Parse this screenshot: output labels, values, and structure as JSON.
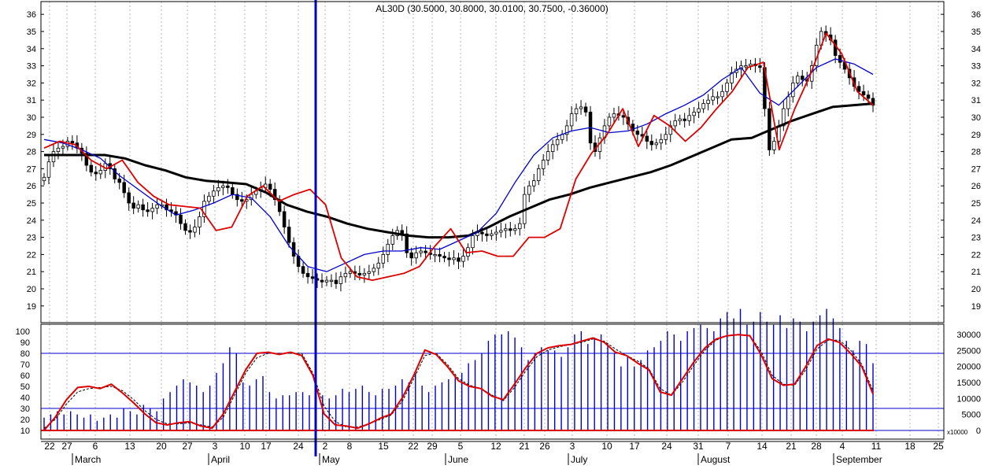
{
  "header": {
    "title": "AL30D (30.5000, 30.8000, 30.0100, 30.7500, -0.36000)"
  },
  "colors": {
    "candle_body_up": "#ffffff",
    "candle_body_down": "#000000",
    "ma_fast": "#dd0000",
    "ma_mid": "#0000cc",
    "ma_slow": "#000000",
    "cursor": "#0000cc",
    "volume": "#0000cc",
    "osc_k": "#dd0000",
    "osc_d": "#000000",
    "level_lines": "#0000cc"
  },
  "chart_data": [
    {
      "type": "candlestick",
      "title": "AL30D (30.5000, 30.8000, 30.0100, 30.7500, -0.36000)",
      "y_ticks": [
        19,
        20,
        21,
        22,
        23,
        24,
        25,
        26,
        27,
        28,
        29,
        30,
        31,
        32,
        33,
        34,
        35,
        36
      ],
      "ylim": [
        18.2,
        36.6
      ],
      "grid": "vertical dotted",
      "series": [
        {
          "name": "",
          "kind": "close_path",
          "values": [
            26.5,
            27.4,
            28.0,
            28.2,
            28.3,
            28.6,
            28.5,
            28.2,
            27.9,
            27.2,
            26.8,
            26.7,
            26.9,
            27.3,
            27.0,
            26.4,
            26.2,
            25.6,
            25.0,
            24.7,
            24.9,
            24.6,
            24.5,
            24.7,
            24.9,
            24.9,
            24.6,
            24.5,
            24.3,
            23.8,
            23.4,
            23.3,
            23.6,
            24.2,
            25.1,
            25.4,
            25.7,
            25.9,
            26.0,
            25.9,
            25.5,
            25.2,
            25.1,
            25.2,
            25.5,
            25.7,
            25.9,
            26.1,
            25.8,
            25.2,
            24.5,
            23.6,
            22.7,
            21.9,
            21.3,
            20.9,
            20.7,
            20.6,
            20.5,
            20.4,
            20.5,
            20.5,
            20.3,
            20.7,
            20.9,
            21.0,
            20.9,
            20.8,
            20.9,
            21.0,
            21.2,
            21.5,
            22.0,
            22.6,
            23.1,
            23.4,
            23.2,
            22.1,
            21.8,
            22.1,
            22.2,
            22.1,
            22.0,
            22.0,
            21.9,
            21.8,
            21.7,
            21.8,
            21.6,
            21.9,
            22.4,
            23.1,
            23.3,
            23.2,
            23.1,
            23.2,
            23.3,
            23.4,
            23.5,
            23.4,
            23.5,
            23.8,
            25.5,
            26.0,
            26.3,
            27.0,
            27.5,
            28.0,
            28.4,
            28.7,
            29.0,
            29.5,
            30.2,
            30.5,
            30.6,
            30.3,
            28.5,
            28.0,
            28.8,
            29.5,
            30.0,
            30.2,
            30.1,
            30.0,
            29.6,
            29.2,
            29.0,
            28.9,
            28.6,
            28.4,
            28.5,
            28.7,
            29.0,
            29.5,
            29.8,
            29.9,
            29.8,
            30.1,
            30.3,
            30.5,
            30.8,
            31.0,
            31.2,
            31.2,
            31.5,
            32.0,
            32.6,
            32.8,
            33.0,
            33.0,
            33.1,
            33.0,
            32.9,
            30.5,
            28.1,
            28.6,
            29.5,
            30.5,
            31.2,
            32.0,
            32.4,
            32.2,
            32.1,
            33.0,
            34.2,
            35.0,
            34.8,
            34.5,
            33.6,
            33.2,
            32.8,
            32.3,
            31.8,
            31.5,
            31.3,
            31.1,
            30.7
          ]
        },
        {
          "name": "",
          "kind": "moving_average_fast",
          "values": [
            28.2,
            28.6,
            28.4,
            27.5,
            27.0,
            27.5,
            26.2,
            25.4,
            24.9,
            24.8,
            24.7,
            23.4,
            23.6,
            25.4,
            26.0,
            25.1,
            25.5,
            25.8,
            24.9,
            21.8,
            20.7,
            20.5,
            20.7,
            20.9,
            21.3,
            22.5,
            23.5,
            22.1,
            22.2,
            21.9,
            21.9,
            23.0,
            23.0,
            23.5,
            26.4,
            27.9,
            29.0,
            30.5,
            28.3,
            30.1,
            29.5,
            28.6,
            29.4,
            30.5,
            31.5,
            32.9,
            33.2,
            28.1,
            30.5,
            32.5,
            34.9,
            33.7,
            31.5,
            30.7
          ]
        },
        {
          "name": "",
          "kind": "moving_average_mid",
          "values": [
            28.7,
            28.5,
            28.1,
            27.6,
            26.6,
            25.8,
            25.0,
            24.3,
            24.6,
            25.0,
            25.5,
            25.3,
            24.2,
            22.5,
            21.3,
            21.0,
            21.5,
            22.0,
            22.2,
            22.2,
            22.4,
            22.3,
            22.8,
            23.3,
            24.4,
            26.2,
            27.8,
            28.8,
            29.2,
            29.4,
            29.1,
            29.2,
            29.6,
            30.2,
            30.7,
            31.3,
            32.2,
            32.9,
            31.4,
            30.7,
            31.8,
            32.9,
            33.4,
            33.1,
            32.5
          ]
        },
        {
          "name": "",
          "kind": "moving_average_slow",
          "values": [
            27.8,
            27.8,
            27.8,
            27.8,
            27.6,
            27.2,
            26.9,
            26.5,
            26.3,
            26.2,
            26.1,
            25.6,
            24.9,
            24.5,
            24.2,
            23.8,
            23.5,
            23.3,
            23.1,
            23.0,
            23.0,
            23.1,
            23.6,
            24.2,
            24.7,
            25.2,
            25.5,
            25.9,
            26.2,
            26.5,
            26.8,
            27.2,
            27.7,
            28.2,
            28.7,
            28.8,
            29.3,
            29.8,
            30.2,
            30.6,
            30.7,
            30.8
          ]
        }
      ]
    },
    {
      "type": "line",
      "y_ticks_left": [
        10,
        20,
        30,
        40,
        50,
        60,
        70,
        80,
        90,
        100
      ],
      "y_ticks_right": [
        "0",
        "5000",
        "10000",
        "15000",
        "20000",
        "25000",
        "30000"
      ],
      "right_axis_unit": "x10000",
      "levels": [
        80,
        30,
        10
      ],
      "ylim": [
        0,
        105
      ],
      "series": [
        {
          "name": "",
          "kind": "oscillator_k",
          "values": [
            10,
            22,
            38,
            49,
            50,
            48,
            52,
            44,
            35,
            25,
            17,
            15,
            17,
            18,
            14,
            12,
            25,
            45,
            65,
            80,
            81,
            79,
            81,
            78,
            60,
            25,
            15,
            14,
            12,
            16,
            21,
            25,
            40,
            60,
            83,
            79,
            68,
            55,
            50,
            48,
            41,
            38,
            52,
            67,
            80,
            85,
            87,
            88,
            91,
            94,
            90,
            81,
            78,
            71,
            65,
            45,
            42,
            57,
            72,
            85,
            93,
            96,
            97,
            96,
            79,
            57,
            51,
            52,
            68,
            87,
            93,
            90,
            80,
            68,
            43
          ]
        },
        {
          "name": "",
          "kind": "oscillator_d",
          "values": [
            12,
            20,
            34,
            45,
            48,
            49,
            50,
            46,
            38,
            28,
            20,
            16,
            16,
            17,
            15,
            13,
            22,
            42,
            62,
            76,
            80,
            80,
            80,
            80,
            62,
            32,
            18,
            13,
            13,
            16,
            20,
            24,
            37,
            57,
            78,
            80,
            70,
            57,
            51,
            48,
            42,
            37,
            49,
            64,
            77,
            83,
            86,
            88,
            90,
            93,
            91,
            84,
            78,
            73,
            66,
            48,
            42,
            54,
            69,
            83,
            92,
            96,
            97,
            96,
            82,
            60,
            52,
            51,
            65,
            84,
            92,
            92,
            83,
            70,
            46
          ]
        },
        {
          "name": "",
          "kind": "volume",
          "values": [
            4,
            5,
            6,
            5,
            6,
            5,
            4,
            5,
            3,
            4,
            5,
            4,
            7,
            6,
            5,
            8,
            7,
            6,
            10,
            12,
            14,
            16,
            15,
            14,
            12,
            14,
            18,
            21,
            26,
            24,
            15,
            14,
            16,
            17,
            12,
            10,
            11,
            11,
            12,
            12,
            11,
            10,
            11,
            10,
            11,
            13,
            12,
            13,
            14,
            12,
            11,
            13,
            13,
            14,
            16,
            15,
            18,
            14,
            12,
            14,
            15,
            16,
            17,
            18,
            21,
            22,
            24,
            28,
            30,
            30,
            31,
            29,
            26,
            22,
            24,
            26,
            25,
            25,
            23,
            26,
            30,
            31,
            27,
            29,
            30,
            27,
            24,
            20,
            23,
            20,
            22,
            25,
            26,
            28,
            31,
            30,
            28,
            31,
            32,
            33,
            32,
            31,
            35,
            37,
            35,
            38,
            33,
            34,
            37,
            34,
            33,
            36,
            32,
            35,
            34,
            31,
            34,
            36,
            38,
            35,
            32,
            28,
            25,
            28,
            27,
            21
          ]
        }
      ]
    }
  ],
  "x_axis": {
    "day_labels": [
      "22",
      "27",
      "6",
      "13",
      "20",
      "27",
      "3",
      "10",
      "17",
      "24",
      "2",
      "8",
      "15",
      "22",
      "29",
      "5",
      "12",
      "21",
      "26",
      "3",
      "10",
      "17",
      "24",
      "31",
      "7",
      "14",
      "21",
      "28",
      "4",
      "11",
      "18",
      "25"
    ],
    "month_labels": [
      "March",
      "April",
      "May",
      "June",
      "July",
      "August",
      "September"
    ]
  }
}
